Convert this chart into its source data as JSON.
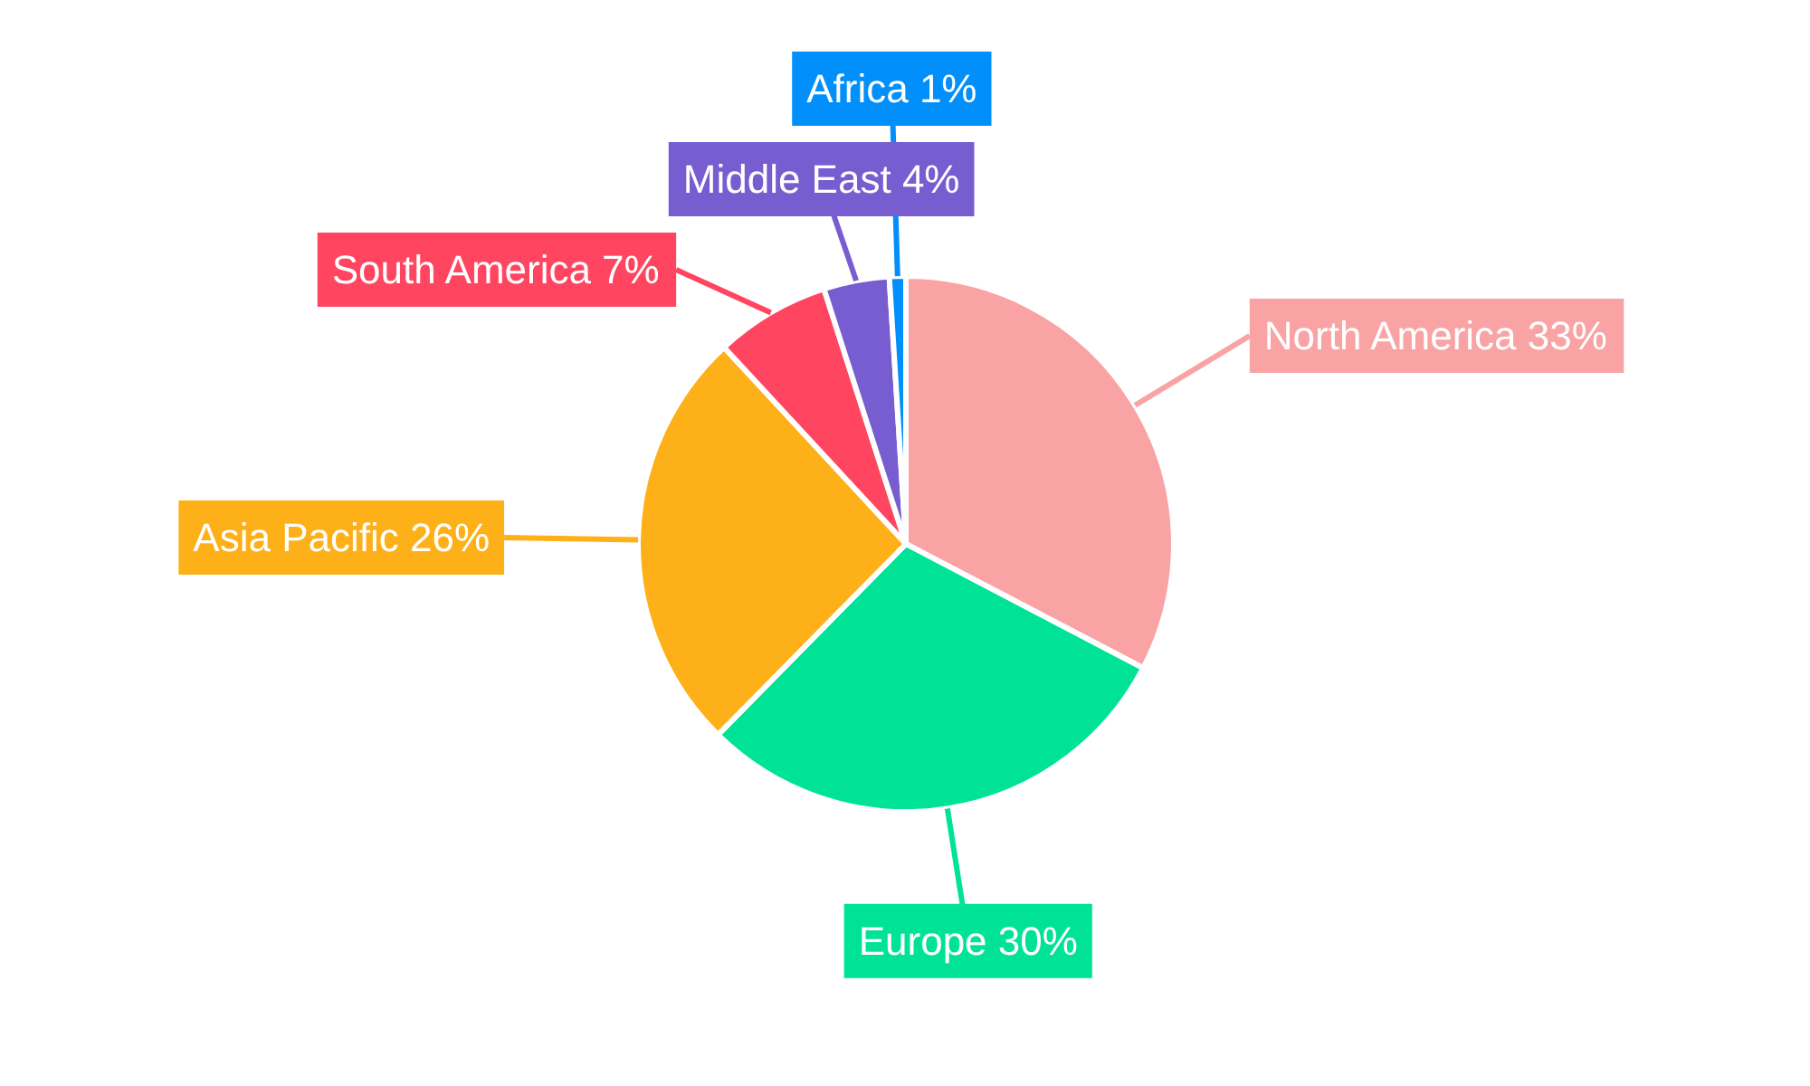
{
  "chart_data": {
    "type": "pie",
    "categories": [
      "North America",
      "Europe",
      "Asia Pacific",
      "South America",
      "Middle East",
      "Africa"
    ],
    "values": [
      33,
      30,
      26,
      7,
      4,
      1
    ],
    "value_labels": [
      "33%",
      "30%",
      "26%",
      "7%",
      "4%",
      "1%"
    ],
    "colors": [
      "#f9a3a4",
      "#00e396",
      "#feb019",
      "#ff4560",
      "#775dd0",
      "#008ffb"
    ]
  }
}
